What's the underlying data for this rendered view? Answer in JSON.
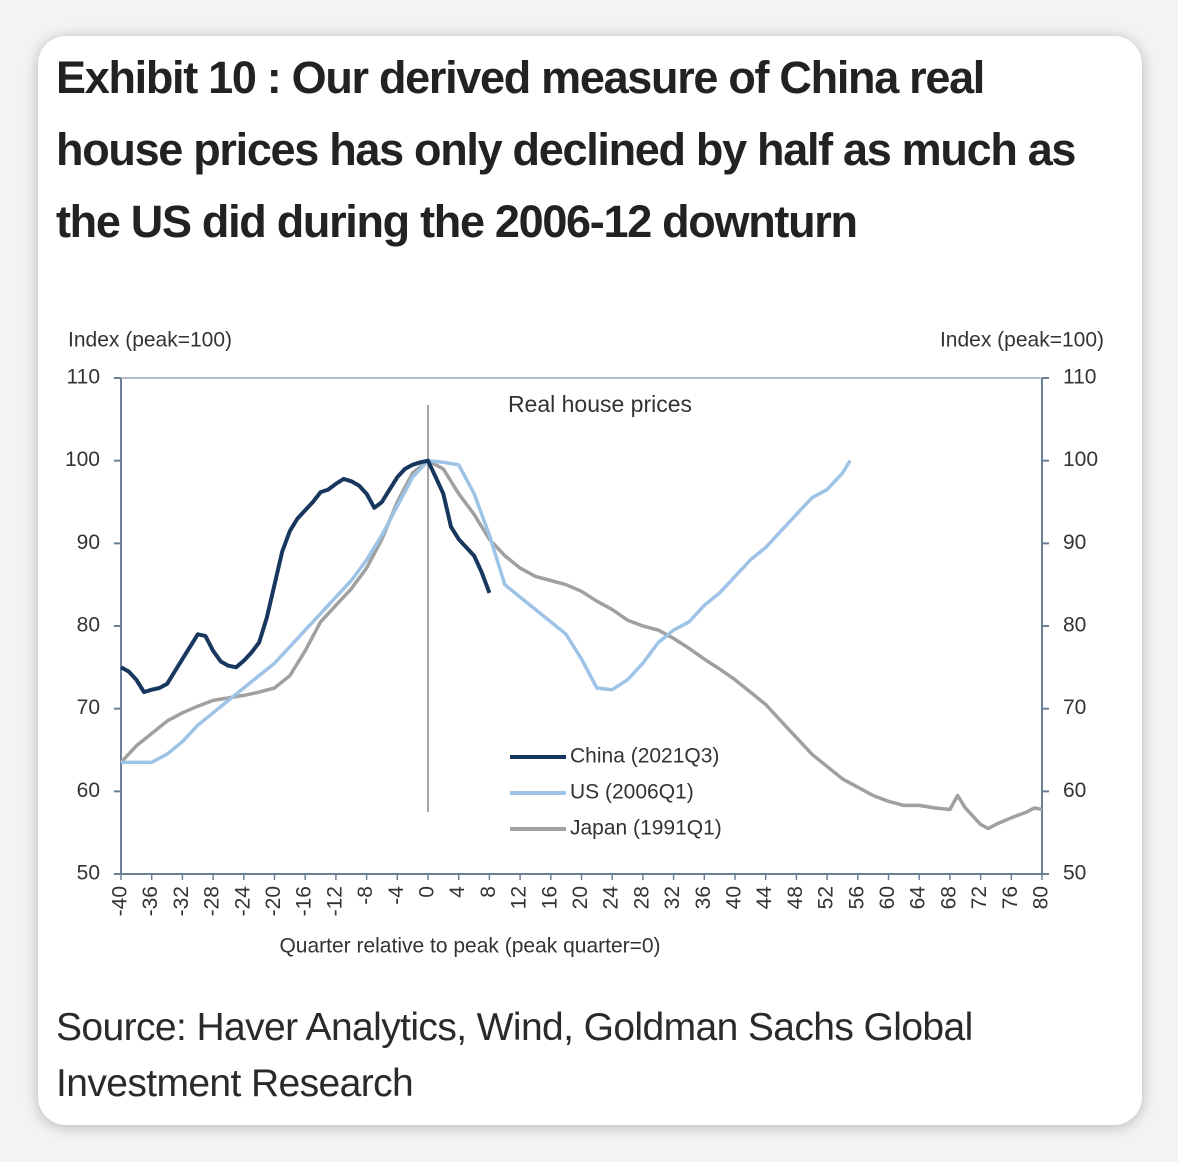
{
  "chart_data": {
    "type": "line",
    "title": "Exhibit 10 : Our derived measure of China real house prices has only declined by half as much as the US did during the 2006-12 downturn",
    "annotation": "Real house prices",
    "y_label": "Index (peak=100)",
    "y2_label": "Index (peak=100)",
    "x_label": "Quarter relative to peak (peak quarter=0)",
    "source": "Source: Haver Analytics, Wind, Goldman Sachs Global Investment Research",
    "xlim": [
      -40,
      80
    ],
    "xticks": [
      -40,
      -36,
      -32,
      -28,
      -24,
      -20,
      -16,
      -12,
      -8,
      -4,
      0,
      4,
      8,
      12,
      16,
      20,
      24,
      28,
      32,
      36,
      40,
      44,
      48,
      52,
      56,
      60,
      64,
      68,
      72,
      76,
      80
    ],
    "ylim": [
      50,
      110
    ],
    "yticks": [
      50,
      60,
      70,
      80,
      90,
      100,
      110
    ],
    "y2lim": [
      50,
      110
    ],
    "y2ticks": [
      50,
      60,
      70,
      80,
      90,
      100,
      110
    ],
    "series": [
      {
        "name": "China (2021Q3)",
        "color": "#17375e",
        "x": [
          -40,
          -39,
          -38,
          -37,
          -36,
          -35,
          -34,
          -33,
          -32,
          -31,
          -30,
          -29,
          -28,
          -27,
          -26,
          -25,
          -24,
          -23,
          -22,
          -21,
          -20,
          -19,
          -18,
          -17,
          -16,
          -15,
          -14,
          -13,
          -12,
          -11,
          -10,
          -9,
          -8,
          -7,
          -6,
          -5,
          -4,
          -3,
          -2,
          -1,
          0,
          1,
          2,
          3,
          4,
          5,
          6,
          7,
          8
        ],
        "values": [
          75,
          74.5,
          73.5,
          72,
          72.3,
          72.5,
          73,
          74.5,
          76,
          77.5,
          79,
          78.8,
          77,
          75.7,
          75.2,
          75,
          75.8,
          76.8,
          78,
          81,
          85,
          89,
          91.5,
          93,
          94,
          95,
          96.2,
          96.5,
          97.2,
          97.8,
          97.5,
          97,
          96,
          94.3,
          95,
          96.5,
          98,
          99,
          99.5,
          99.8,
          100,
          98,
          96,
          92,
          90.5,
          89.5,
          88.5,
          86.5,
          84
        ]
      },
      {
        "name": "US (2006Q1)",
        "color": "#9dc3e6",
        "x": [
          -40,
          -38,
          -36,
          -34,
          -32,
          -30,
          -28,
          -26,
          -24,
          -22,
          -20,
          -18,
          -16,
          -14,
          -12,
          -10,
          -8,
          -6,
          -4,
          -2,
          0,
          2,
          4,
          6,
          8,
          10,
          12,
          14,
          16,
          18,
          20,
          22,
          24,
          26,
          28,
          30,
          32,
          34,
          36,
          38,
          40,
          42,
          44,
          46,
          48,
          50,
          52,
          54,
          55
        ],
        "values": [
          63.5,
          63.5,
          63.5,
          64.5,
          66,
          68,
          69.5,
          71,
          72.5,
          74,
          75.5,
          77.5,
          79.5,
          81.5,
          83.5,
          85.5,
          88,
          91,
          94.5,
          98,
          100,
          99.8,
          99.5,
          96,
          91,
          85,
          83.5,
          82,
          80.5,
          79,
          76,
          72.5,
          72.3,
          73.5,
          75.5,
          78,
          79.5,
          80.5,
          82.5,
          84,
          86,
          88,
          89.5,
          91.5,
          93.5,
          95.5,
          96.5,
          98.5,
          100
        ]
      },
      {
        "name": "Japan (1991Q1)",
        "color": "#a0a0a0",
        "x": [
          -40,
          -38,
          -36,
          -34,
          -32,
          -30,
          -28,
          -26,
          -24,
          -22,
          -20,
          -18,
          -16,
          -14,
          -12,
          -10,
          -8,
          -6,
          -4,
          -2,
          0,
          2,
          4,
          6,
          8,
          10,
          12,
          14,
          16,
          18,
          20,
          22,
          24,
          26,
          28,
          30,
          32,
          34,
          36,
          38,
          40,
          42,
          44,
          46,
          48,
          50,
          52,
          54,
          56,
          58,
          60,
          62,
          64,
          66,
          68,
          69,
          70,
          72,
          73,
          74,
          76,
          78,
          79,
          80
        ],
        "values": [
          63.5,
          65.5,
          67,
          68.5,
          69.5,
          70.3,
          71,
          71.3,
          71.6,
          72,
          72.5,
          74,
          77,
          80.5,
          82.5,
          84.5,
          87,
          90.5,
          95,
          98.5,
          100,
          99,
          96,
          93.5,
          90.5,
          88.5,
          87,
          86,
          85.5,
          85,
          84.2,
          83,
          82,
          80.7,
          80,
          79.5,
          78.5,
          77.3,
          76,
          74.8,
          73.5,
          72,
          70.5,
          68.5,
          66.5,
          64.5,
          63,
          61.5,
          60.5,
          59.5,
          58.8,
          58.3,
          58.3,
          58,
          57.8,
          59.5,
          58,
          56,
          55.5,
          56,
          56.8,
          57.5,
          58,
          57.8
        ]
      }
    ]
  }
}
